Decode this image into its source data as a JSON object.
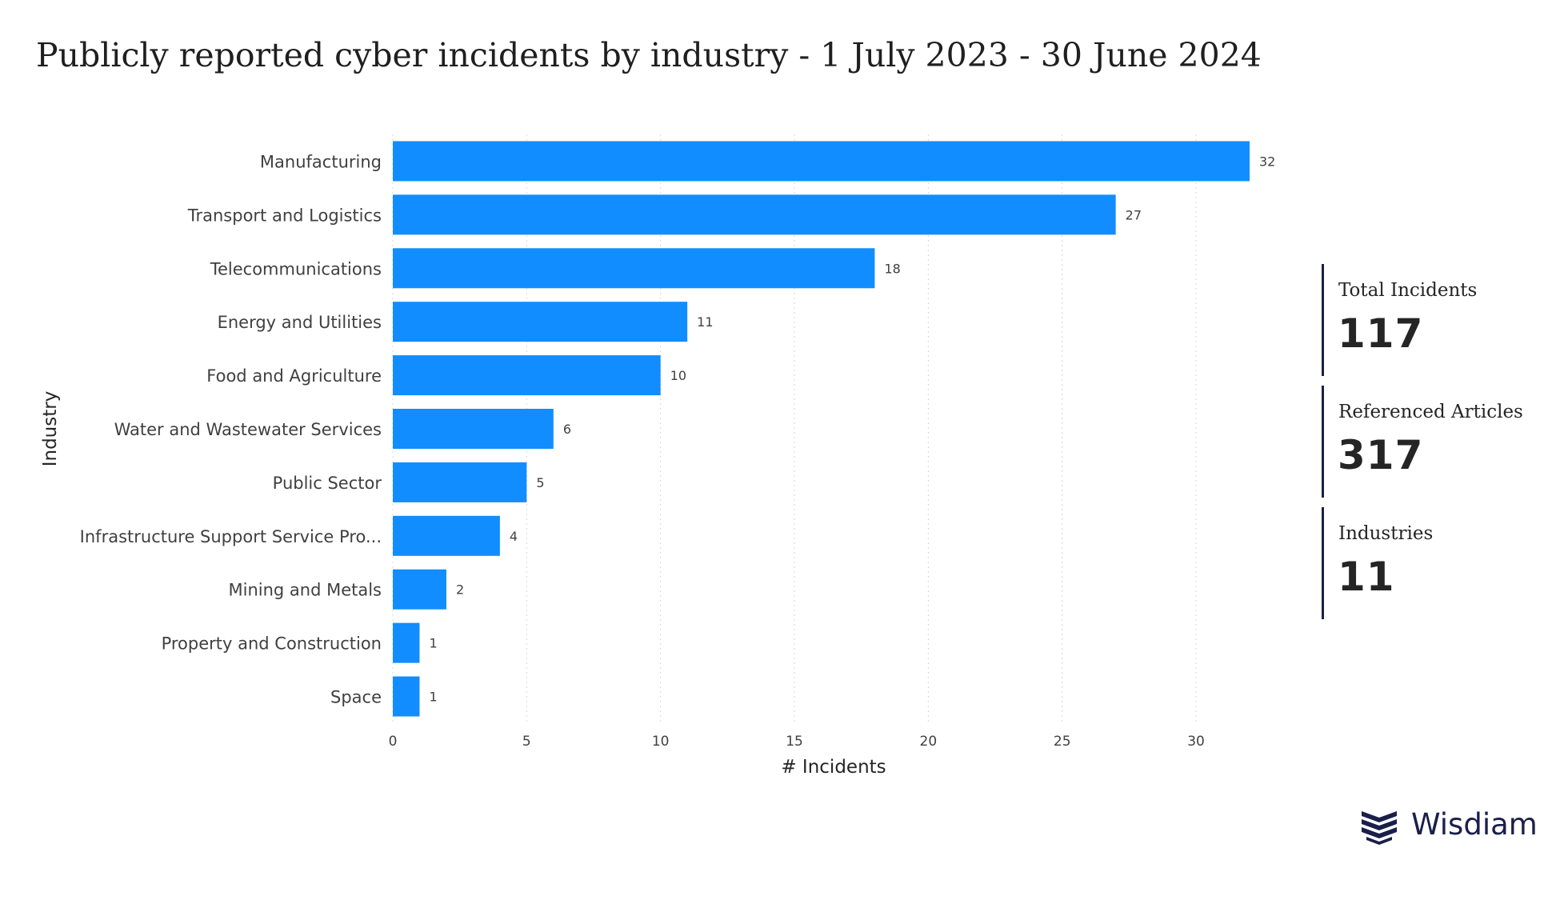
{
  "title": "Publicly reported cyber incidents by industry - 1 July 2023 - 30 June 2024",
  "colors": {
    "bar": "#118DFF",
    "kpi_border": "#1a1f4a",
    "text": "#252525"
  },
  "chart_data": {
    "type": "bar",
    "orientation": "horizontal",
    "title": "Publicly reported cyber incidents by industry - 1 July 2023 - 30 June 2024",
    "xlabel": "# Incidents",
    "ylabel": "Industry",
    "categories": [
      "Manufacturing",
      "Transport and Logistics",
      "Telecommunications",
      "Energy and Utilities",
      "Food and Agriculture",
      "Water and Wastewater Services",
      "Public Sector",
      "Infrastructure Support Service Pro...",
      "Mining and Metals",
      "Property and Construction",
      "Space"
    ],
    "values": [
      32,
      27,
      18,
      11,
      10,
      6,
      5,
      4,
      2,
      1,
      1
    ],
    "xlim": [
      0,
      32
    ],
    "xticks": [
      0,
      5,
      10,
      15,
      20,
      25,
      30
    ],
    "grid": "vertical dotted",
    "data_labels": true
  },
  "kpis": [
    {
      "label": "Total Incidents",
      "value": "117"
    },
    {
      "label": "Referenced Articles",
      "value": "317"
    },
    {
      "label": "Industries",
      "value": "11"
    }
  ],
  "logo": {
    "text": "Wisdiam",
    "icon": "wisdiam-logo-icon"
  }
}
